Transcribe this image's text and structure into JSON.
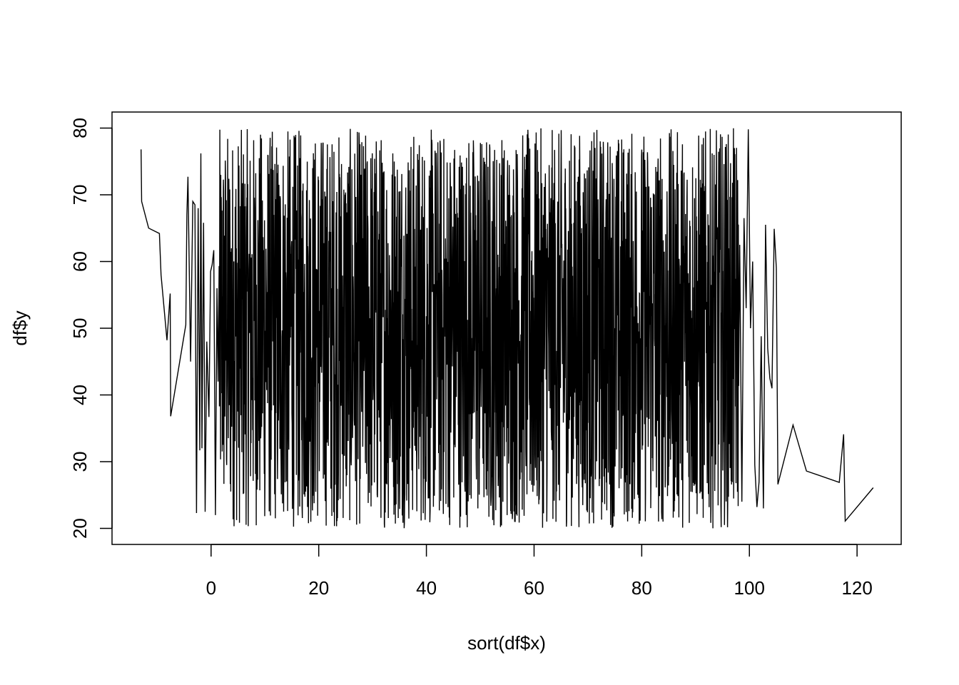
{
  "chart_data": {
    "type": "line",
    "title": "",
    "xlabel": "sort(df$x)",
    "ylabel": "df$y",
    "xlim": [
      -18.4,
      128.2
    ],
    "ylim": [
      17.6,
      82.4
    ],
    "x_ticks": [
      0,
      20,
      40,
      60,
      80,
      100,
      120
    ],
    "y_ticks": [
      20,
      30,
      40,
      50,
      60,
      70,
      80
    ],
    "grid": false,
    "legend": "none",
    "line_color": "#000000",
    "series": [
      {
        "x": [
          -13,
          -12.9,
          -11.6,
          -9.6,
          -9.3,
          -8.2,
          -7.6,
          -7.5,
          -4.7,
          -4.5,
          -4.3,
          -3.8,
          -3.4,
          -3.0,
          -2.7,
          -2.4,
          -2.1,
          -1.9,
          -1.7,
          -1.4,
          -1.1,
          -0.8,
          -0.4,
          -0.1,
          0.2,
          0.5,
          0.8,
          1.1,
          1.3,
          98.2,
          98.6,
          99.0,
          99.4,
          99.8,
          100.2,
          100.6,
          101.0,
          101.4,
          101.8,
          102.2,
          102.6,
          103.0,
          103.4,
          103.8,
          104.2,
          104.6,
          105.0,
          105.3,
          108.1,
          110.6,
          116.7,
          117.5,
          117.8,
          123.0
        ],
        "y": [
          76.8,
          69.0,
          65.0,
          64.2,
          58.0,
          48.2,
          55.2,
          36.8,
          50.5,
          67.0,
          72.7,
          45.0,
          69.0,
          68.5,
          22.3,
          68.0,
          31.7,
          76.2,
          32.0,
          65.8,
          22.5,
          48.0,
          36.7,
          58.5,
          59.5,
          61.7,
          22.0,
          56.0,
          42.0,
          62.5,
          24.0,
          66.5,
          53.0,
          79.8,
          50.0,
          60.0,
          29.5,
          23.2,
          27.0,
          48.8,
          23.0,
          65.5,
          47.0,
          42.5,
          41.0,
          64.9,
          59.0,
          26.6,
          35.5,
          28.6,
          26.9,
          34.1,
          21.1,
          26.1
        ],
        "dense_segment": {
          "x_range": [
            1.5,
            98.0
          ],
          "y_range": [
            20.0,
            80.0
          ],
          "description": "many points sorted by x with y values oscillating rapidly between about 20 and 80"
        }
      }
    ]
  }
}
